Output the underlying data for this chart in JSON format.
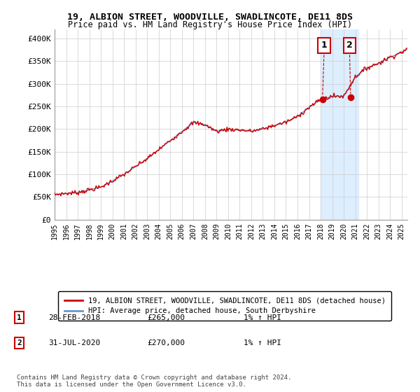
{
  "title1": "19, ALBION STREET, WOODVILLE, SWADLINCOTE, DE11 8DS",
  "title2": "Price paid vs. HM Land Registry's House Price Index (HPI)",
  "ylabel_ticks": [
    "£0",
    "£50K",
    "£100K",
    "£150K",
    "£200K",
    "£250K",
    "£300K",
    "£350K",
    "£400K"
  ],
  "ytick_values": [
    0,
    50000,
    100000,
    150000,
    200000,
    250000,
    300000,
    350000,
    400000
  ],
  "ylim": [
    0,
    420000
  ],
  "xlim_start": 1995.0,
  "xlim_end": 2025.5,
  "hpi_color": "#6699cc",
  "price_color": "#cc0000",
  "marker_color": "#cc0000",
  "background_color": "#ffffff",
  "grid_color": "#cccccc",
  "legend1_label": "19, ALBION STREET, WOODVILLE, SWADLINCOTE, DE11 8DS (detached house)",
  "legend2_label": "HPI: Average price, detached house, South Derbyshire",
  "annotation1_date": "28-FEB-2018",
  "annotation1_price": "£265,000",
  "annotation1_hpi": "1% ↑ HPI",
  "annotation2_date": "31-JUL-2020",
  "annotation2_price": "£270,000",
  "annotation2_hpi": "1% ↑ HPI",
  "footnote": "Contains HM Land Registry data © Crown copyright and database right 2024.\nThis data is licensed under the Open Government Licence v3.0.",
  "sale1_x": 2018.167,
  "sale1_y": 265000,
  "sale2_x": 2020.583,
  "sale2_y": 270000,
  "highlight_x1": 2018.0,
  "highlight_x2": 2021.25,
  "highlight_color": "#ddeeff"
}
